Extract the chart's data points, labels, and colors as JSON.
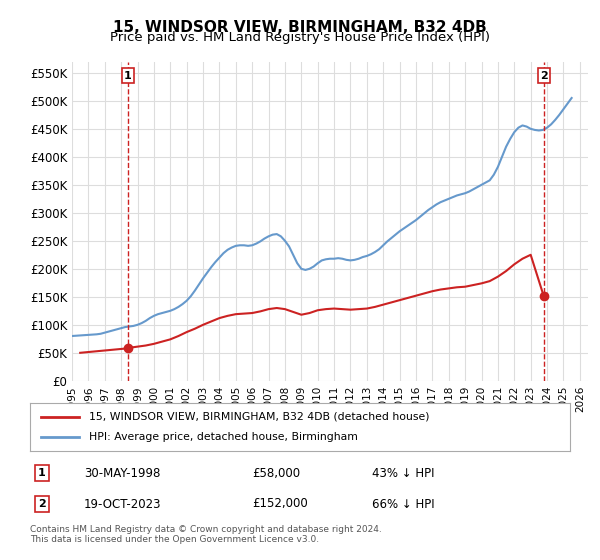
{
  "title": "15, WINDSOR VIEW, BIRMINGHAM, B32 4DB",
  "subtitle": "Price paid vs. HM Land Registry's House Price Index (HPI)",
  "title_fontsize": 11,
  "subtitle_fontsize": 9.5,
  "ylabel_ticks": [
    "£0",
    "£50K",
    "£100K",
    "£150K",
    "£200K",
    "£250K",
    "£300K",
    "£350K",
    "£400K",
    "£450K",
    "£500K",
    "£550K"
  ],
  "ytick_values": [
    0,
    50000,
    100000,
    150000,
    200000,
    250000,
    300000,
    350000,
    400000,
    450000,
    500000,
    550000
  ],
  "ylim": [
    0,
    570000
  ],
  "xlim_start": 1995.0,
  "xlim_end": 2026.5,
  "background_color": "#ffffff",
  "grid_color": "#dddddd",
  "hpi_color": "#6699cc",
  "price_color": "#cc2222",
  "point1_x": 1998.41,
  "point1_y": 58000,
  "point2_x": 2023.79,
  "point2_y": 152000,
  "legend_label1": "15, WINDSOR VIEW, BIRMINGHAM, B32 4DB (detached house)",
  "legend_label2": "HPI: Average price, detached house, Birmingham",
  "table_rows": [
    {
      "num": "1",
      "date": "30-MAY-1998",
      "price": "£58,000",
      "pct": "43% ↓ HPI"
    },
    {
      "num": "2",
      "date": "19-OCT-2023",
      "price": "£152,000",
      "pct": "66% ↓ HPI"
    }
  ],
  "footnote": "Contains HM Land Registry data © Crown copyright and database right 2024.\nThis data is licensed under the Open Government Licence v3.0.",
  "hpi_data_x": [
    1995.0,
    1995.25,
    1995.5,
    1995.75,
    1996.0,
    1996.25,
    1996.5,
    1996.75,
    1997.0,
    1997.25,
    1997.5,
    1997.75,
    1998.0,
    1998.25,
    1998.5,
    1998.75,
    1999.0,
    1999.25,
    1999.5,
    1999.75,
    2000.0,
    2000.25,
    2000.5,
    2000.75,
    2001.0,
    2001.25,
    2001.5,
    2001.75,
    2002.0,
    2002.25,
    2002.5,
    2002.75,
    2003.0,
    2003.25,
    2003.5,
    2003.75,
    2004.0,
    2004.25,
    2004.5,
    2004.75,
    2005.0,
    2005.25,
    2005.5,
    2005.75,
    2006.0,
    2006.25,
    2006.5,
    2006.75,
    2007.0,
    2007.25,
    2007.5,
    2007.75,
    2008.0,
    2008.25,
    2008.5,
    2008.75,
    2009.0,
    2009.25,
    2009.5,
    2009.75,
    2010.0,
    2010.25,
    2010.5,
    2010.75,
    2011.0,
    2011.25,
    2011.5,
    2011.75,
    2012.0,
    2012.25,
    2012.5,
    2012.75,
    2013.0,
    2013.25,
    2013.5,
    2013.75,
    2014.0,
    2014.25,
    2014.5,
    2014.75,
    2015.0,
    2015.25,
    2015.5,
    2015.75,
    2016.0,
    2016.25,
    2016.5,
    2016.75,
    2017.0,
    2017.25,
    2017.5,
    2017.75,
    2018.0,
    2018.25,
    2018.5,
    2018.75,
    2019.0,
    2019.25,
    2019.5,
    2019.75,
    2020.0,
    2020.25,
    2020.5,
    2020.75,
    2021.0,
    2021.25,
    2021.5,
    2021.75,
    2022.0,
    2022.25,
    2022.5,
    2022.75,
    2023.0,
    2023.25,
    2023.5,
    2023.75,
    2024.0,
    2024.25,
    2024.5,
    2024.75,
    2025.0,
    2025.25,
    2025.5
  ],
  "hpi_data_y": [
    80000,
    80500,
    81000,
    81500,
    82000,
    82500,
    83000,
    84000,
    86000,
    88000,
    90000,
    92000,
    94000,
    96000,
    97000,
    98000,
    100000,
    103000,
    107000,
    112000,
    116000,
    119000,
    121000,
    123000,
    125000,
    128000,
    132000,
    137000,
    143000,
    151000,
    161000,
    172000,
    183000,
    193000,
    203000,
    212000,
    220000,
    228000,
    234000,
    238000,
    241000,
    242000,
    242000,
    241000,
    242000,
    245000,
    249000,
    254000,
    258000,
    261000,
    262000,
    258000,
    250000,
    240000,
    225000,
    210000,
    200000,
    198000,
    200000,
    204000,
    210000,
    215000,
    217000,
    218000,
    218000,
    219000,
    218000,
    216000,
    215000,
    216000,
    218000,
    221000,
    223000,
    226000,
    230000,
    235000,
    242000,
    249000,
    255000,
    261000,
    267000,
    272000,
    277000,
    282000,
    287000,
    293000,
    299000,
    305000,
    310000,
    315000,
    319000,
    322000,
    325000,
    328000,
    331000,
    333000,
    335000,
    338000,
    342000,
    346000,
    350000,
    354000,
    358000,
    368000,
    382000,
    400000,
    418000,
    432000,
    444000,
    452000,
    456000,
    454000,
    450000,
    448000,
    447000,
    448000,
    452000,
    458000,
    466000,
    475000,
    485000,
    495000,
    505000
  ],
  "price_data_x": [
    1995.5,
    1998.41,
    1998.5,
    1999.0,
    1999.5,
    2000.0,
    2000.5,
    2001.0,
    2001.5,
    2002.0,
    2002.5,
    2003.0,
    2003.5,
    2004.0,
    2004.5,
    2005.0,
    2005.5,
    2006.0,
    2006.5,
    2007.0,
    2007.5,
    2008.0,
    2008.5,
    2009.0,
    2009.5,
    2010.0,
    2010.5,
    2011.0,
    2011.5,
    2012.0,
    2012.5,
    2013.0,
    2013.5,
    2014.0,
    2014.5,
    2015.0,
    2015.5,
    2016.0,
    2016.5,
    2017.0,
    2017.5,
    2018.0,
    2018.5,
    2019.0,
    2019.5,
    2020.0,
    2020.5,
    2021.0,
    2021.5,
    2022.0,
    2022.5,
    2023.0,
    2023.79,
    2024.0
  ],
  "price_data_y": [
    50000,
    58000,
    59000,
    61000,
    63000,
    66000,
    70000,
    74000,
    80000,
    87000,
    93000,
    100000,
    106000,
    112000,
    116000,
    119000,
    120000,
    121000,
    124000,
    128000,
    130000,
    128000,
    123000,
    118000,
    121000,
    126000,
    128000,
    129000,
    128000,
    127000,
    128000,
    129000,
    132000,
    136000,
    140000,
    144000,
    148000,
    152000,
    156000,
    160000,
    163000,
    165000,
    167000,
    168000,
    171000,
    174000,
    178000,
    186000,
    196000,
    208000,
    218000,
    225000,
    152000,
    155000
  ]
}
